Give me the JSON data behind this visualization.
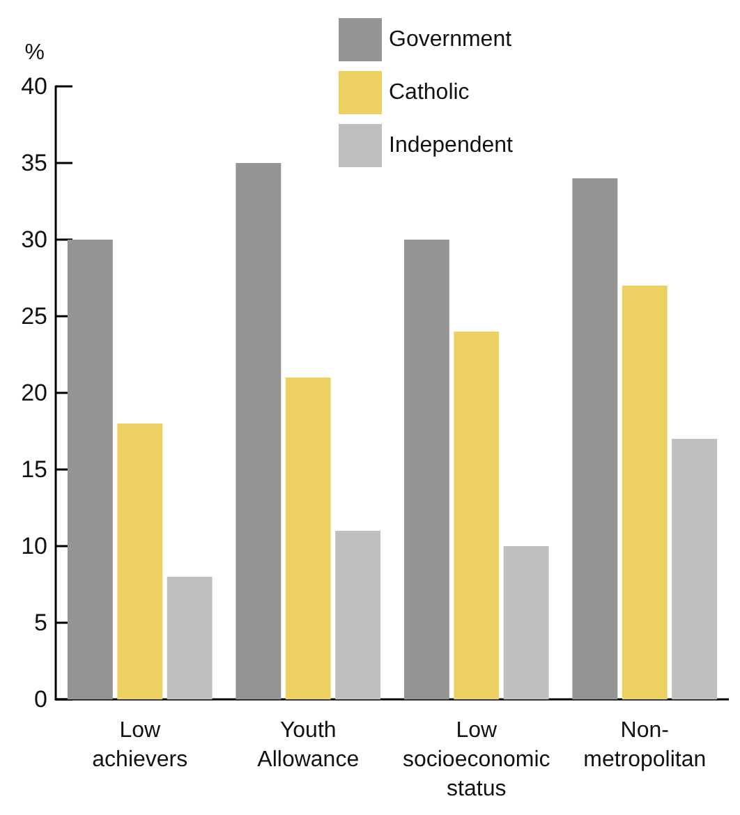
{
  "chart_data": {
    "type": "bar",
    "ylabel": "%",
    "categories": [
      "Low\nachievers",
      "Youth\nAllowance",
      "Low\nsocioeconomic\nstatus",
      "Non-\nmetropolitan"
    ],
    "series": [
      {
        "name": "Government",
        "color": "#949494",
        "values": [
          30,
          35,
          30,
          34
        ]
      },
      {
        "name": "Catholic",
        "color": "#ecd162",
        "values": [
          18,
          21,
          24,
          27
        ]
      },
      {
        "name": "Independent",
        "color": "#bfbfbf",
        "values": [
          8,
          11,
          10,
          17
        ]
      }
    ],
    "ylim": [
      0,
      40
    ],
    "yticks": [
      0,
      5,
      10,
      15,
      20,
      25,
      30,
      35,
      40
    ],
    "grid": false,
    "legend": "top"
  }
}
